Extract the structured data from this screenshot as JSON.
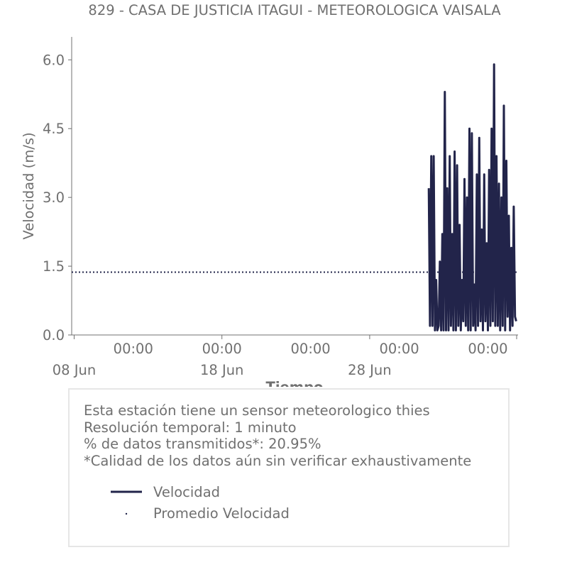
{
  "chart_data": {
    "type": "line",
    "title": "829 - CASA DE JUSTICIA ITAGUI - METEOROLOGICA VAISALA",
    "xlabel": "Tiempo",
    "ylabel": "Velocidad (m/s)",
    "ylim": [
      0,
      6.5
    ],
    "xlim": [
      "2023-06-07T20:00",
      "2023-07-08T01:00"
    ],
    "yticks": [
      "0.0",
      "1.5",
      "3.0",
      "4.5",
      "6.0"
    ],
    "x_minor_ticks": [
      "00:00",
      "00:00",
      "00:00",
      "00:00",
      "00:00"
    ],
    "x_major_ticks": [
      "08 Jun",
      "18 Jun",
      "28 Jun"
    ],
    "grid": false,
    "series": [
      {
        "name": "Velocidad",
        "color": "#22244a",
        "style": "solid",
        "x": [
          "2023-07-02T00:00",
          "2023-07-02T02:00",
          "2023-07-02T04:00",
          "2023-07-02T06:00",
          "2023-07-02T08:00",
          "2023-07-02T10:00",
          "2023-07-02T12:00",
          "2023-07-02T14:00",
          "2023-07-02T16:00",
          "2023-07-02T18:00",
          "2023-07-02T20:00",
          "2023-07-02T22:00",
          "2023-07-03T00:00",
          "2023-07-03T02:00",
          "2023-07-03T04:00",
          "2023-07-03T06:00",
          "2023-07-03T08:00",
          "2023-07-03T10:00",
          "2023-07-03T12:00",
          "2023-07-03T14:00",
          "2023-07-03T16:00",
          "2023-07-03T18:00",
          "2023-07-03T20:00",
          "2023-07-03T22:00",
          "2023-07-04T00:00",
          "2023-07-04T02:00",
          "2023-07-04T04:00",
          "2023-07-04T06:00",
          "2023-07-04T08:00",
          "2023-07-04T10:00",
          "2023-07-04T12:00",
          "2023-07-04T14:00",
          "2023-07-04T16:00",
          "2023-07-04T18:00",
          "2023-07-04T20:00",
          "2023-07-04T22:00",
          "2023-07-05T00:00",
          "2023-07-05T02:00",
          "2023-07-05T04:00",
          "2023-07-05T06:00",
          "2023-07-05T08:00",
          "2023-07-05T10:00",
          "2023-07-05T12:00",
          "2023-07-05T14:00",
          "2023-07-05T16:00",
          "2023-07-05T18:00",
          "2023-07-05T20:00",
          "2023-07-05T22:00",
          "2023-07-06T00:00",
          "2023-07-06T02:00",
          "2023-07-06T04:00",
          "2023-07-06T06:00",
          "2023-07-06T08:00",
          "2023-07-06T10:00",
          "2023-07-06T12:00",
          "2023-07-06T14:00",
          "2023-07-06T16:00",
          "2023-07-06T18:00",
          "2023-07-06T20:00",
          "2023-07-06T22:00",
          "2023-07-07T00:00",
          "2023-07-07T02:00",
          "2023-07-07T04:00",
          "2023-07-07T06:00",
          "2023-07-07T08:00",
          "2023-07-07T10:00",
          "2023-07-07T12:00",
          "2023-07-07T14:00",
          "2023-07-07T16:00",
          "2023-07-07T18:00",
          "2023-07-07T20:00",
          "2023-07-07T22:00"
        ],
        "values": [
          3.2,
          0.2,
          3.9,
          0.2,
          3.9,
          0.1,
          1.2,
          0.1,
          0.2,
          1.6,
          0.1,
          2.2,
          0.1,
          5.3,
          0.1,
          3.2,
          0.1,
          3.9,
          0.2,
          2.2,
          0.1,
          4.0,
          0.1,
          3.7,
          0.2,
          2.4,
          0.1,
          1.2,
          0.3,
          3.4,
          0.2,
          3.0,
          0.1,
          4.5,
          0.1,
          4.4,
          0.2,
          1.1,
          0.1,
          3.5,
          0.2,
          4.3,
          0.3,
          2.3,
          0.1,
          3.5,
          0.3,
          2.0,
          0.1,
          3.6,
          0.2,
          4.5,
          0.3,
          5.9,
          0.2,
          3.9,
          0.2,
          3.3,
          0.1,
          3.0,
          0.2,
          5.0,
          0.1,
          3.8,
          0.4,
          2.6,
          0.1,
          1.9,
          0.2,
          2.8,
          0.4,
          0.3
        ]
      },
      {
        "name": "Promedio Velocidad",
        "color": "#22244a",
        "style": "dotted",
        "x": [
          "2023-06-07T20:00",
          "2023-07-08T01:00"
        ],
        "values": [
          1.37,
          1.37
        ]
      }
    ],
    "legend": "inside info box, bottom-left"
  },
  "info": {
    "lines": [
      "Esta estación tiene un sensor meteorologico thies",
      "Resolución temporal: 1 minuto",
      "% de datos transmitidos*: 20.95%",
      "*Calidad de los datos aún sin verificar exhaustivamente"
    ],
    "legend": [
      {
        "label": "Velocidad",
        "style": "solid",
        "color": "#22244a"
      },
      {
        "label": "Promedio Velocidad",
        "style": "dot",
        "color": "#22244a"
      }
    ]
  }
}
